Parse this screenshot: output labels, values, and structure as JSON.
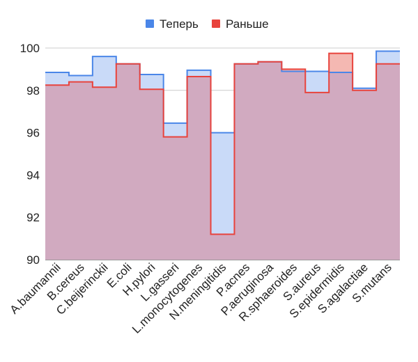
{
  "chart_data": {
    "type": "area",
    "title": "",
    "xlabel": "",
    "ylabel": "",
    "ylim": [
      90,
      100
    ],
    "yticks": [
      90,
      92,
      94,
      96,
      98,
      100
    ],
    "grid": true,
    "legend_position": "top-center",
    "categories": [
      "A.baumannii",
      "B.cereus",
      "C.beijerinckii",
      "E.coli",
      "H.pylori",
      "L.gasseri",
      "L.monocytogenes",
      "N.meningitidis",
      "P.acnes",
      "P.aeruginosa",
      "R.sphaeroides",
      "S.aureus",
      "S.epidermidis",
      "S.agalactiae",
      "S.mutans"
    ],
    "series": [
      {
        "name": "Теперь",
        "color": "#4a86e8",
        "fill": "#c9daf8",
        "values": [
          98.85,
          98.7,
          99.6,
          99.25,
          98.75,
          96.45,
          98.95,
          96.0,
          99.25,
          99.35,
          98.9,
          98.9,
          98.85,
          98.1,
          99.85
        ]
      },
      {
        "name": "Раньше",
        "color": "#e8433c",
        "fill": "#f4b8b2",
        "values": [
          98.25,
          98.4,
          98.15,
          99.25,
          98.05,
          95.8,
          98.65,
          91.2,
          99.25,
          99.35,
          99.0,
          97.9,
          99.75,
          98.0,
          99.25
        ]
      }
    ],
    "overlap_fill": "#d1aac0"
  }
}
